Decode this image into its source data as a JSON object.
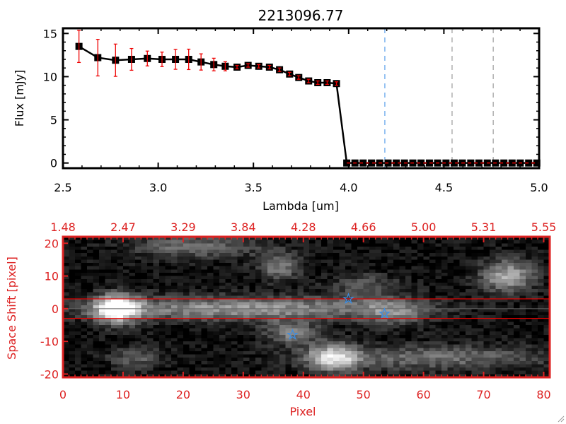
{
  "chart_data": [
    {
      "type": "scatter",
      "title": "2213096.77",
      "xlabel": "Lambda [um]",
      "ylabel": "Flux [mJy]",
      "xlim": [
        2.5,
        5.0
      ],
      "ylim": [
        -0.6,
        15.6
      ],
      "xticks": [
        "2.5",
        "3.0",
        "3.5",
        "4.0",
        "4.5",
        "5.0"
      ],
      "xtick_values": [
        2.5,
        3.0,
        3.5,
        4.0,
        4.5,
        5.0
      ],
      "yticks": [
        "0",
        "5",
        "10",
        "15"
      ],
      "ytick_values": [
        0,
        5,
        10,
        15
      ],
      "series": [
        {
          "name": "flux",
          "x": [
            2.584,
            2.683,
            2.776,
            2.86,
            2.943,
            3.02,
            3.091,
            3.16,
            3.225,
            3.292,
            3.352,
            3.414,
            3.472,
            3.528,
            3.584,
            3.637,
            3.69,
            3.738,
            3.79,
            3.838,
            3.887,
            3.936
          ],
          "y": [
            13.5,
            12.2,
            11.9,
            12.0,
            12.1,
            12.0,
            12.0,
            12.0,
            11.7,
            11.4,
            11.2,
            11.1,
            11.3,
            11.2,
            11.1,
            10.8,
            10.3,
            9.9,
            9.5,
            9.3,
            9.3,
            9.2
          ],
          "yerr": [
            1.86,
            2.12,
            1.87,
            1.26,
            0.86,
            0.84,
            1.15,
            1.18,
            0.94,
            0.73,
            0.53,
            0.2,
            0.2,
            0.2,
            0.2,
            0.2,
            0.2,
            0.2,
            0.2,
            0.2,
            0.2,
            0.2
          ]
        },
        {
          "name": "zero_flux",
          "x": [
            3.99,
            4.033,
            4.076,
            4.12,
            4.163,
            4.207,
            4.25,
            4.293,
            4.337,
            4.38,
            4.424,
            4.467,
            4.511,
            4.554,
            4.597,
            4.641,
            4.684,
            4.728,
            4.771,
            4.815,
            4.858,
            4.901,
            4.945,
            4.988
          ],
          "y": [
            0,
            0,
            0,
            0,
            0,
            0,
            0,
            0,
            0,
            0,
            0,
            0,
            0,
            0,
            0,
            0,
            0,
            0,
            0,
            0,
            0,
            0,
            0,
            0
          ]
        }
      ],
      "vlines": [
        {
          "x": 4.19,
          "color": "#3a8ee6"
        },
        {
          "x": 4.543,
          "color": "#888888"
        },
        {
          "x": 4.759,
          "color": "#888888"
        }
      ],
      "hline_zero_color": "#ee0000",
      "marker_color": "#000000",
      "errorbar_color": "#ee0000"
    },
    {
      "type": "heatmap",
      "xlabel": "Pixel",
      "ylabel": "Space Shift [pixel]",
      "xlim": [
        0,
        81
      ],
      "ylim": [
        -21,
        22
      ],
      "xticks": [
        "0",
        "10",
        "20",
        "30",
        "40",
        "50",
        "60",
        "70",
        "80"
      ],
      "xtick_values": [
        0,
        10,
        20,
        30,
        40,
        50,
        60,
        70,
        80
      ],
      "yticks": [
        "20",
        "10",
        "0",
        "-10",
        "-20"
      ],
      "ytick_values": [
        20,
        10,
        0,
        -10,
        -20
      ],
      "top_ticks": [
        "1.48",
        "2.47",
        "3.29",
        "3.84",
        "4.28",
        "4.66",
        "5.00",
        "5.31",
        "5.55"
      ],
      "aperture_lines": [
        3,
        -3
      ],
      "center_line": 0,
      "stars": [
        {
          "x": 47.5,
          "y": 3.0
        },
        {
          "x": 53.5,
          "y": -1.5
        },
        {
          "x": 38.2,
          "y": -8.0
        }
      ],
      "sources": [
        {
          "x": 9,
          "y": 0,
          "amp": 1.0,
          "sx": 2.6,
          "sy": 3.0
        },
        {
          "x": 30,
          "y": 0,
          "amp": 0.55,
          "sx": 18,
          "sy": 2.6
        },
        {
          "x": 55,
          "y": -1,
          "amp": 0.35,
          "sx": 4,
          "sy": 3
        },
        {
          "x": 45,
          "y": -15,
          "amp": 0.75,
          "sx": 3,
          "sy": 3
        },
        {
          "x": 62,
          "y": -15,
          "amp": 0.38,
          "sx": 14,
          "sy": 2.6
        },
        {
          "x": 74,
          "y": 10,
          "amp": 0.62,
          "sx": 3.2,
          "sy": 3.5
        },
        {
          "x": 36,
          "y": 13,
          "amp": 0.45,
          "sx": 2.5,
          "sy": 3
        },
        {
          "x": 22,
          "y": 19,
          "amp": 0.4,
          "sx": 7,
          "sy": 2.5
        },
        {
          "x": 12,
          "y": -15,
          "amp": 0.32,
          "sx": 3,
          "sy": 2.5
        },
        {
          "x": 38,
          "y": -7.5,
          "amp": 0.45,
          "sx": 3,
          "sy": 2.5
        },
        {
          "x": 50,
          "y": 7,
          "amp": 0.25,
          "sx": 4,
          "sy": 3
        }
      ],
      "colors": {
        "axis": "#dd2222",
        "star": "#3a8ee6",
        "aperture": "#ee0000"
      }
    }
  ]
}
